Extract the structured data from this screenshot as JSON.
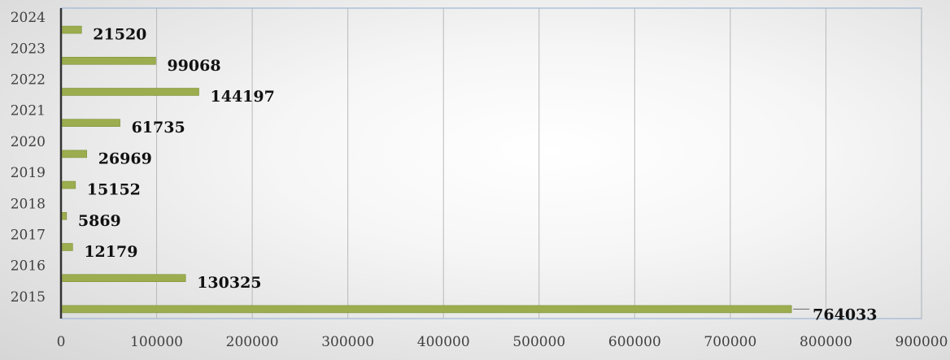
{
  "chart_data": {
    "type": "bar",
    "orientation": "horizontal",
    "categories": [
      "2015",
      "2016",
      "2017",
      "2018",
      "2019",
      "2020",
      "2021",
      "2022",
      "2023",
      "2024"
    ],
    "values": [
      764033,
      130325,
      12179,
      5869,
      15152,
      26969,
      61735,
      144197,
      99068,
      21520
    ],
    "data_labels": [
      "764033",
      "130325",
      "12179",
      "5869",
      "15152",
      "26969",
      "61735",
      "144197",
      "99068",
      "21520"
    ],
    "x_ticks": [
      "0",
      "100000",
      "200000",
      "300000",
      "400000",
      "500000",
      "600000",
      "700000",
      "800000",
      "900000"
    ],
    "xlim": [
      0,
      900000
    ],
    "grid": "vertical",
    "legend": "none",
    "title": "",
    "xlabel": "",
    "ylabel": "",
    "colors": {
      "bar": "#9bad4e",
      "bar_edge": "#7e9138",
      "grid": "#b9b9b9",
      "plot_border": "#9db7d5",
      "axis": "#333333",
      "text": "#404040",
      "label_text": "#111111"
    }
  }
}
